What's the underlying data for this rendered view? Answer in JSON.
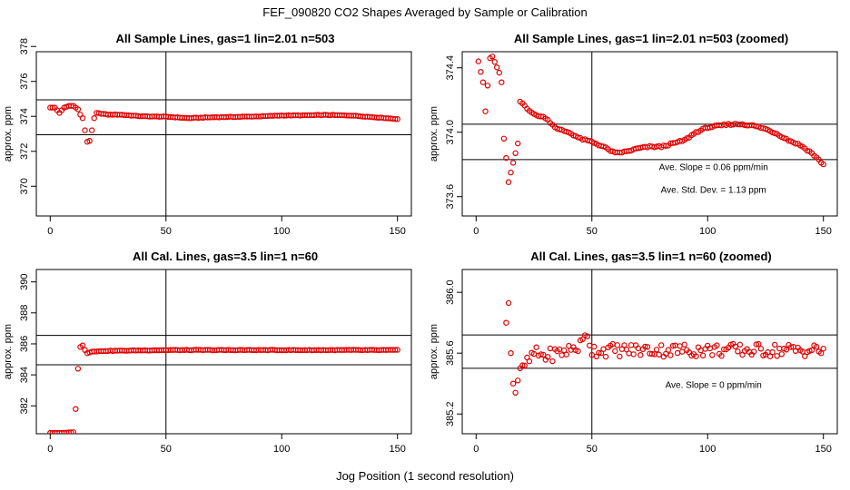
{
  "figure": {
    "title": "FEF_090820  CO2 Shapes Averaged by Sample or Calibration",
    "xlabel": "Jog Position (1 second resolution)"
  },
  "colors": {
    "points": "#e00000",
    "lines": "#000000",
    "background": "#ffffff"
  },
  "chart_data": [
    {
      "type": "scatter",
      "title": "All Sample Lines, gas=1 lin=2.01 n=503",
      "ylabel": "approx. ppm",
      "xlim": [
        -6,
        156
      ],
      "ylim": [
        368.3,
        377.7
      ],
      "xticks": [
        0,
        50,
        100,
        150
      ],
      "yticks": [
        370,
        372,
        374,
        376,
        378
      ],
      "hlines": [
        372.95,
        374.95
      ],
      "vline": 50,
      "annotations": [],
      "anchors": [
        [
          0,
          374.5
        ],
        [
          2,
          374.5
        ],
        [
          4,
          374.2
        ],
        [
          6,
          374.5
        ],
        [
          8,
          374.6
        ],
        [
          10,
          374.6
        ],
        [
          12,
          374.4
        ],
        [
          13,
          374.1
        ],
        [
          14,
          373.9
        ],
        [
          15,
          373.2
        ],
        [
          16,
          372.55
        ],
        [
          17,
          372.6
        ],
        [
          18,
          373.2
        ],
        [
          19,
          373.9
        ],
        [
          20,
          374.2
        ],
        [
          25,
          374.1
        ],
        [
          30,
          374.1
        ],
        [
          40,
          374.0
        ],
        [
          50,
          373.98
        ],
        [
          60,
          373.9
        ],
        [
          70,
          373.95
        ],
        [
          80,
          373.97
        ],
        [
          90,
          374.0
        ],
        [
          100,
          374.05
        ],
        [
          110,
          374.06
        ],
        [
          120,
          374.08
        ],
        [
          130,
          374.05
        ],
        [
          140,
          373.95
        ],
        [
          150,
          373.85
        ]
      ]
    },
    {
      "type": "scatter",
      "title": "All Sample Lines, gas=1 lin=2.01 n=503 (zoomed)",
      "ylabel": "approx. ppm",
      "xlim": [
        -6,
        156
      ],
      "ylim": [
        373.48,
        374.5
      ],
      "xticks": [
        0,
        50,
        100,
        150
      ],
      "yticks": [
        373.6,
        374.0,
        374.4
      ],
      "hlines": [
        374.05,
        373.83
      ],
      "vline": 50,
      "annotations": [
        "Ave. Slope =  0.06  ppm/min",
        "Ave. Std. Dev. =  1.13  ppm"
      ],
      "anchors": [
        [
          1,
          374.44
        ],
        [
          3,
          374.31
        ],
        [
          4,
          374.13
        ],
        [
          5,
          374.29
        ],
        [
          6,
          374.46
        ],
        [
          7,
          374.47
        ],
        [
          10,
          374.37
        ],
        [
          11,
          374.31
        ],
        [
          12,
          373.96
        ],
        [
          13,
          373.84
        ],
        [
          14,
          373.69
        ],
        [
          18,
          373.93
        ],
        [
          19,
          374.19
        ],
        [
          20,
          374.18
        ],
        [
          22,
          374.15
        ],
        [
          25,
          374.11
        ],
        [
          30,
          374.09
        ],
        [
          35,
          374.02
        ],
        [
          40,
          374.0
        ],
        [
          45,
          373.96
        ],
        [
          50,
          373.94
        ],
        [
          55,
          373.91
        ],
        [
          60,
          373.87
        ],
        [
          65,
          373.88
        ],
        [
          70,
          373.9
        ],
        [
          75,
          373.91
        ],
        [
          80,
          373.91
        ],
        [
          85,
          373.93
        ],
        [
          90,
          373.95
        ],
        [
          95,
          374.0
        ],
        [
          100,
          374.03
        ],
        [
          105,
          374.04
        ],
        [
          110,
          374.05
        ],
        [
          115,
          374.05
        ],
        [
          120,
          374.04
        ],
        [
          125,
          374.02
        ],
        [
          130,
          373.99
        ],
        [
          135,
          373.95
        ],
        [
          140,
          373.92
        ],
        [
          145,
          373.87
        ],
        [
          150,
          373.8
        ]
      ]
    },
    {
      "type": "scatter",
      "title": "All Cal. Lines, gas=3.5 lin=1 n=60",
      "ylabel": "approx. ppm",
      "xlim": [
        -6,
        156
      ],
      "ylim": [
        380.2,
        390.8
      ],
      "xticks": [
        0,
        50,
        100,
        150
      ],
      "yticks": [
        382,
        384,
        386,
        388,
        390
      ],
      "hlines": [
        386.55,
        384.65
      ],
      "vline": 50,
      "annotations": [],
      "anchors": [
        [
          0,
          380.25
        ],
        [
          5,
          380.25
        ],
        [
          10,
          380.3
        ],
        [
          11,
          381.8
        ],
        [
          12,
          384.4
        ],
        [
          13,
          385.8
        ],
        [
          14,
          385.9
        ],
        [
          15,
          385.6
        ],
        [
          16,
          385.4
        ],
        [
          18,
          385.5
        ],
        [
          25,
          385.55
        ],
        [
          50,
          385.6
        ],
        [
          100,
          385.6
        ],
        [
          150,
          385.6
        ]
      ]
    },
    {
      "type": "scatter",
      "title": "All Cal. Lines, gas=3.5 lin=1 n=60 (zoomed)",
      "ylabel": "approx. ppm",
      "xlim": [
        -6,
        156
      ],
      "ylim": [
        385.07,
        386.15
      ],
      "xticks": [
        0,
        50,
        100,
        150
      ],
      "yticks": [
        385.2,
        385.6,
        386.0
      ],
      "hlines": [
        385.72,
        385.5
      ],
      "vline": 50,
      "annotations": [
        "Ave. Slope =  0  ppm/min"
      ],
      "anchors": [
        [
          13,
          385.8
        ],
        [
          14,
          385.93
        ],
        [
          15,
          385.6
        ],
        [
          16,
          385.4
        ],
        [
          17,
          385.34
        ],
        [
          18,
          385.42
        ],
        [
          19,
          385.5
        ],
        [
          20,
          385.52
        ],
        [
          22,
          385.53
        ],
        [
          25,
          385.6
        ],
        [
          30,
          385.58
        ],
        [
          35,
          385.6
        ],
        [
          40,
          385.62
        ],
        [
          45,
          385.65
        ],
        [
          47,
          385.7
        ],
        [
          48,
          385.73
        ],
        [
          50,
          385.62
        ],
        [
          100,
          385.62
        ],
        [
          150,
          385.62
        ]
      ]
    }
  ]
}
